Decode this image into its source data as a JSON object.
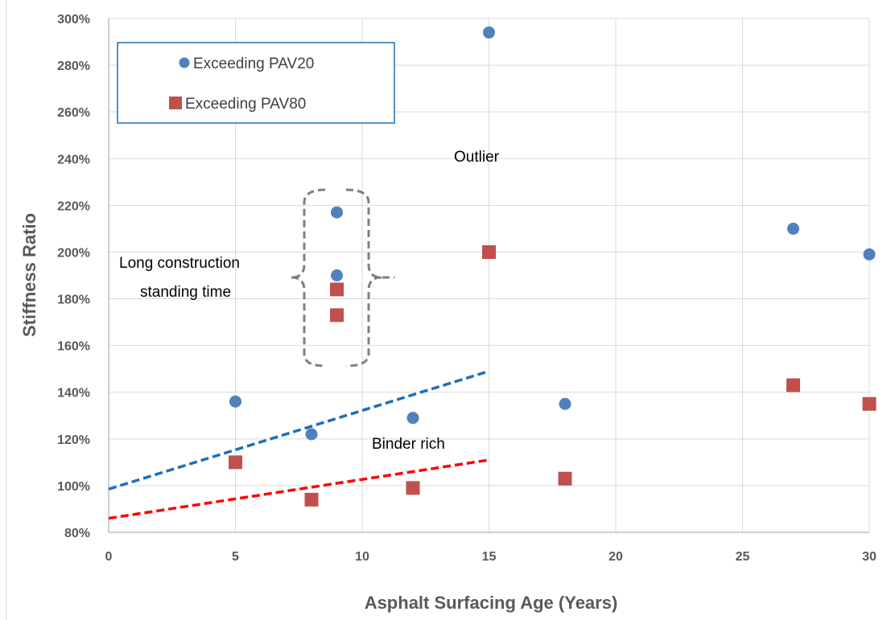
{
  "chart_data": {
    "type": "scatter",
    "xlabel": "Asphalt Surfacing Age (Years)",
    "ylabel": "Stiffness Ratio",
    "xlim": [
      0,
      30
    ],
    "ylim": [
      80,
      300
    ],
    "x_ticks": [
      "0",
      "5",
      "10",
      "15",
      "20",
      "25",
      "30"
    ],
    "y_ticks": [
      "80%",
      "100%",
      "120%",
      "140%",
      "160%",
      "180%",
      "200%",
      "220%",
      "240%",
      "260%",
      "280%",
      "300%"
    ],
    "grid": true,
    "legend_position": "top-left",
    "series": [
      {
        "name": "Exceeding PAV20",
        "marker": "circle",
        "color": "#4f81bd",
        "points": [
          {
            "x": 5,
            "y": 136
          },
          {
            "x": 8,
            "y": 122
          },
          {
            "x": 9,
            "y": 217
          },
          {
            "x": 9,
            "y": 190
          },
          {
            "x": 12,
            "y": 129
          },
          {
            "x": 15,
            "y": 294
          },
          {
            "x": 18,
            "y": 135
          },
          {
            "x": 27,
            "y": 210
          },
          {
            "x": 30,
            "y": 199
          }
        ]
      },
      {
        "name": "Exceeding PAV80",
        "marker": "square",
        "color": "#c0504d",
        "points": [
          {
            "x": 5,
            "y": 110
          },
          {
            "x": 8,
            "y": 94
          },
          {
            "x": 9,
            "y": 184
          },
          {
            "x": 9,
            "y": 173
          },
          {
            "x": 12,
            "y": 99
          },
          {
            "x": 15,
            "y": 200
          },
          {
            "x": 18,
            "y": 103
          },
          {
            "x": 27,
            "y": 143
          },
          {
            "x": 30,
            "y": 135
          }
        ]
      }
    ],
    "trendlines": [
      {
        "color": "#1f6fb5",
        "style": "dashed",
        "from": [
          0,
          98.5
        ],
        "to": [
          15,
          149
        ]
      },
      {
        "color": "#ff0000",
        "style": "dashed",
        "from": [
          0,
          86
        ],
        "to": [
          15,
          111
        ]
      }
    ],
    "annotations": {
      "outlier": "Outlier",
      "long_construction_line1": "Long construction",
      "long_construction_line2": "standing time",
      "binder_rich": "Binder rich"
    }
  }
}
